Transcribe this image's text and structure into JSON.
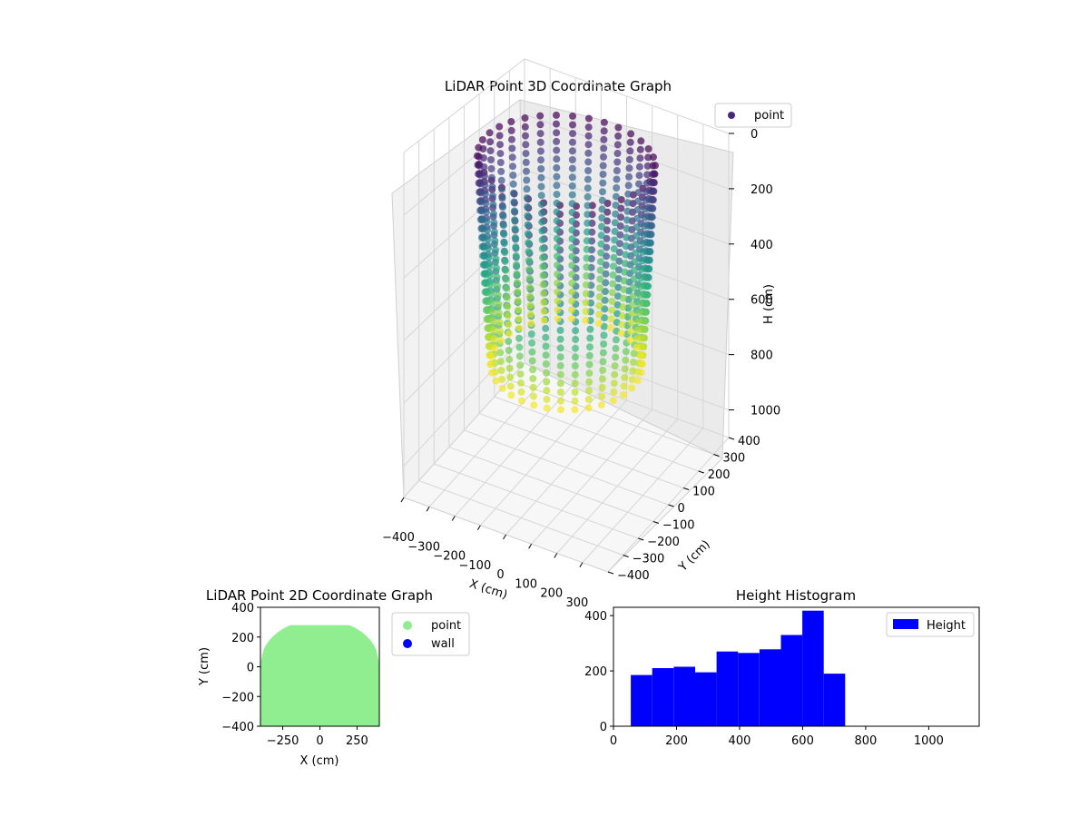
{
  "chart_data": [
    {
      "type": "scatter",
      "projection": "3d",
      "title": "LiDAR Point 3D Coordinate Graph",
      "xlabel": "X (cm)",
      "ylabel": "Y (cm)",
      "zlabel": "H (cm)",
      "xlim": [
        -400,
        400
      ],
      "ylim": [
        -400,
        400
      ],
      "zlim": [
        1100,
        0
      ],
      "z_inverted": true,
      "x_ticks": [
        "−400",
        "−300",
        "−200",
        "−100",
        "0",
        "100",
        "200",
        "300"
      ],
      "y_ticks": [
        "−400",
        "−300",
        "−200",
        "−100",
        "0",
        "100",
        "200",
        "300",
        "400"
      ],
      "z_ticks": [
        "0",
        "200",
        "400",
        "600",
        "800",
        "1000"
      ],
      "colormap": "viridis",
      "color_by": "H (cm)",
      "legend": {
        "label": "point",
        "color": "#482878",
        "position": "upper right"
      },
      "series": [
        {
          "name": "point",
          "shape": "dome",
          "radius_cm": 300,
          "height_range_cm": [
            0,
            700
          ],
          "count": 2650
        }
      ],
      "grid": true
    },
    {
      "type": "scatter",
      "title": "LiDAR Point 2D Coordinate Graph",
      "xlabel": "X (cm)",
      "ylabel": "Y (cm)",
      "xlim": [
        -400,
        400
      ],
      "ylim": [
        -400,
        400
      ],
      "x_ticks": [
        "−250",
        "0",
        "250"
      ],
      "y_ticks": [
        "400",
        "200",
        "0",
        "−200",
        "−400"
      ],
      "series": [
        {
          "name": "point",
          "color": "#90ee90",
          "description_region": {
            "x_range": [
              -400,
              400
            ],
            "y_max": 280
          }
        },
        {
          "name": "wall",
          "color": "#0000ff",
          "values": []
        }
      ],
      "legend": {
        "entries": [
          "point",
          "wall"
        ],
        "position": "outside right"
      }
    },
    {
      "type": "bar",
      "subtype": "histogram",
      "title": "Height Histogram",
      "xlim": [
        0,
        1160
      ],
      "ylim": [
        0,
        430
      ],
      "x_ticks": [
        "0",
        "200",
        "400",
        "600",
        "800",
        "1000"
      ],
      "y_ticks": [
        "0",
        "200",
        "400"
      ],
      "bin_edges": [
        55,
        123,
        191,
        259,
        327,
        395,
        463,
        531,
        599,
        667,
        735
      ],
      "values": [
        185,
        210,
        215,
        195,
        270,
        265,
        278,
        330,
        418,
        190
      ],
      "color": "#0000ff",
      "legend": {
        "label": "Height",
        "position": "upper right"
      }
    }
  ]
}
